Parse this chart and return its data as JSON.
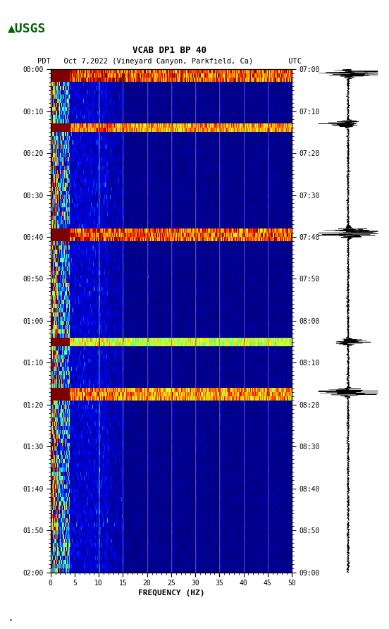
{
  "title_line1": "VCAB DP1 BP 40",
  "title_line2": "PDT   Oct 7,2022 (Vineyard Canyon, Parkfield, Ca)        UTC",
  "xlabel": "FREQUENCY (HZ)",
  "freq_min": 0,
  "freq_max": 50,
  "time_labels_left": [
    "00:00",
    "00:10",
    "00:20",
    "00:30",
    "00:40",
    "00:50",
    "01:00",
    "01:10",
    "01:20",
    "01:30",
    "01:40",
    "01:50",
    "02:00"
  ],
  "time_labels_right": [
    "07:00",
    "07:10",
    "07:20",
    "07:30",
    "07:40",
    "07:50",
    "08:00",
    "08:10",
    "08:20",
    "08:30",
    "08:40",
    "08:50",
    "09:00"
  ],
  "n_time_steps": 120,
  "background_color": "#ffffff",
  "vertical_line_color": "#b8860b",
  "vertical_line_freqs": [
    10,
    15,
    20,
    25,
    30,
    35,
    40,
    45
  ],
  "fig_width": 5.52,
  "fig_height": 8.92,
  "dpi": 100
}
